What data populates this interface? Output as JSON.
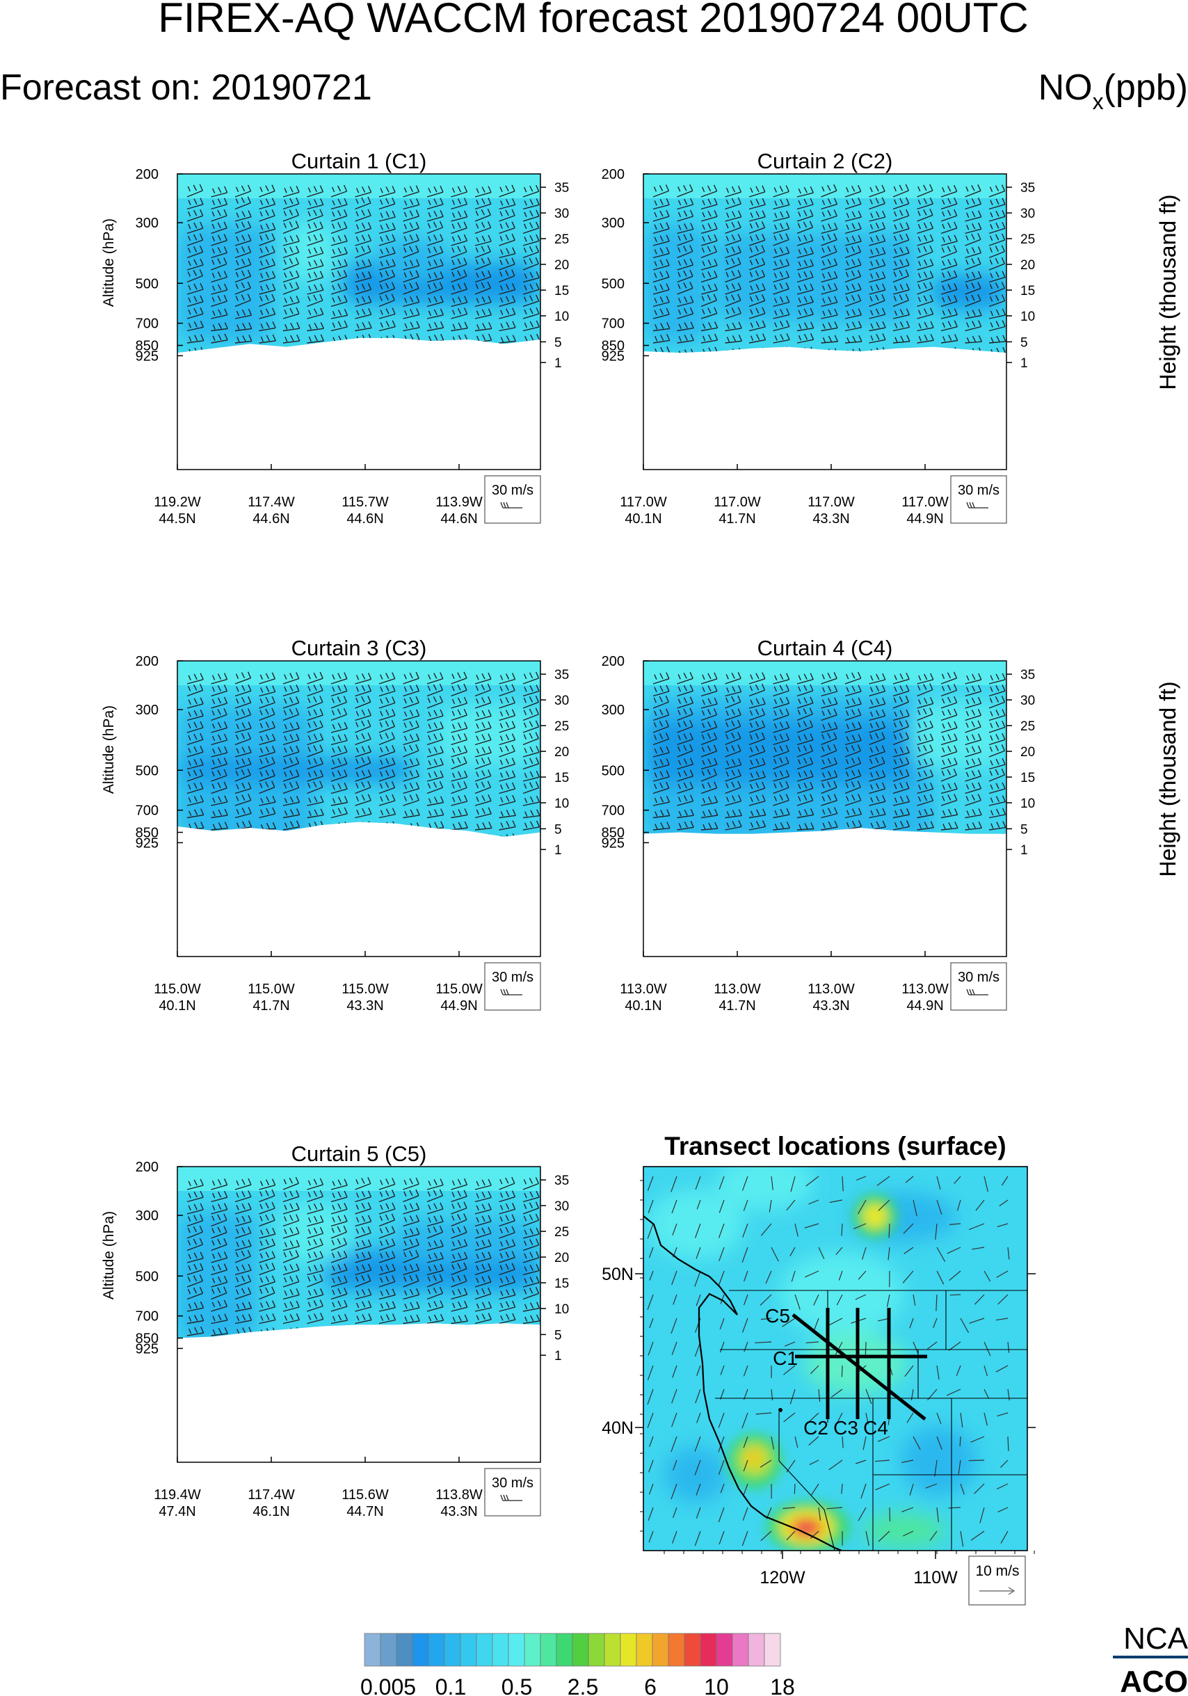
{
  "header": {
    "title": "FIREX-AQ WACCM forecast 20190724 00UTC",
    "forecast_on": "Forecast on: 20190721",
    "species": "NO",
    "species_sub": "x",
    "units": "(ppb)"
  },
  "colors": {
    "bg_fill": "#3fd6ef",
    "mid_fill": "#2ab8ee",
    "deep_fill": "#149ae8",
    "light_fill": "#58ecf0"
  },
  "chart_data": [
    {
      "type": "heatmap",
      "title": "Curtain 1 (C1)",
      "ylabel": "Altitude (hPa)",
      "y2label": "Height (thousand ft)",
      "pressure_ticks": [
        "200",
        "300",
        "500",
        "700",
        "850",
        "925"
      ],
      "height_ticks": [
        "35",
        "30",
        "25",
        "20",
        "15",
        "10",
        "5",
        "1"
      ],
      "x_ticks": [
        {
          "lon": "119.2W",
          "lat": "44.5N"
        },
        {
          "lon": "117.4W",
          "lat": "44.6N"
        },
        {
          "lon": "115.7W",
          "lat": "44.6N"
        },
        {
          "lon": "113.9W",
          "lat": "44.6N"
        }
      ],
      "wind_ref": "30 m/s",
      "value_range_ppb": [
        0.1,
        0.5
      ]
    },
    {
      "type": "heatmap",
      "title": "Curtain 2 (C2)",
      "ylabel": "",
      "y2label": "Height (thousand ft)",
      "pressure_ticks": [
        "200",
        "300",
        "500",
        "700",
        "850",
        "925"
      ],
      "height_ticks": [
        "35",
        "30",
        "25",
        "20",
        "15",
        "10",
        "5",
        "1"
      ],
      "x_ticks": [
        {
          "lon": "117.0W",
          "lat": "40.1N"
        },
        {
          "lon": "117.0W",
          "lat": "41.7N"
        },
        {
          "lon": "117.0W",
          "lat": "43.3N"
        },
        {
          "lon": "117.0W",
          "lat": "44.9N"
        }
      ],
      "wind_ref": "30 m/s",
      "value_range_ppb": [
        0.1,
        0.5
      ]
    },
    {
      "type": "heatmap",
      "title": "Curtain 3 (C3)",
      "ylabel": "Altitude (hPa)",
      "y2label": "Height (thousand ft)",
      "pressure_ticks": [
        "200",
        "300",
        "500",
        "700",
        "850",
        "925"
      ],
      "height_ticks": [
        "35",
        "30",
        "25",
        "20",
        "15",
        "10",
        "5",
        "1"
      ],
      "x_ticks": [
        {
          "lon": "115.0W",
          "lat": "40.1N"
        },
        {
          "lon": "115.0W",
          "lat": "41.7N"
        },
        {
          "lon": "115.0W",
          "lat": "43.3N"
        },
        {
          "lon": "115.0W",
          "lat": "44.9N"
        }
      ],
      "wind_ref": "30 m/s",
      "value_range_ppb": [
        0.1,
        0.5
      ]
    },
    {
      "type": "heatmap",
      "title": "Curtain 4 (C4)",
      "ylabel": "",
      "y2label": "Height (thousand ft)",
      "pressure_ticks": [
        "200",
        "300",
        "500",
        "700",
        "850",
        "925"
      ],
      "height_ticks": [
        "35",
        "30",
        "25",
        "20",
        "15",
        "10",
        "5",
        "1"
      ],
      "x_ticks": [
        {
          "lon": "113.0W",
          "lat": "40.1N"
        },
        {
          "lon": "113.0W",
          "lat": "41.7N"
        },
        {
          "lon": "113.0W",
          "lat": "43.3N"
        },
        {
          "lon": "113.0W",
          "lat": "44.9N"
        }
      ],
      "wind_ref": "30 m/s",
      "value_range_ppb": [
        0.1,
        0.5
      ]
    },
    {
      "type": "heatmap",
      "title": "Curtain 5 (C5)",
      "ylabel": "Altitude (hPa)",
      "y2label": "",
      "pressure_ticks": [
        "200",
        "300",
        "500",
        "700",
        "850",
        "925"
      ],
      "height_ticks": [
        "35",
        "30",
        "25",
        "20",
        "15",
        "10",
        "5",
        "1"
      ],
      "x_ticks": [
        {
          "lon": "119.4W",
          "lat": "47.4N"
        },
        {
          "lon": "117.4W",
          "lat": "46.1N"
        },
        {
          "lon": "115.6W",
          "lat": "44.7N"
        },
        {
          "lon": "113.8W",
          "lat": "43.3N"
        }
      ],
      "wind_ref": "30 m/s",
      "value_range_ppb": [
        0.1,
        0.5
      ]
    },
    {
      "type": "map",
      "title": "Transect locations (surface)",
      "lat_ticks": [
        "50N",
        "40N"
      ],
      "lon_ticks": [
        "120W",
        "110W"
      ],
      "transect_labels": [
        "C5",
        "C1",
        "C2",
        "C3",
        "C4"
      ],
      "wind_ref": "10 m/s",
      "hotspots_ppb": [
        {
          "near": "southern California",
          "value": 10
        },
        {
          "near": "northern California",
          "value": 6
        },
        {
          "near": "southern Alberta",
          "value": 6
        }
      ]
    }
  ],
  "colorbar": {
    "colors": [
      "#8cb4da",
      "#6a9fcd",
      "#4d8ec3",
      "#1d95ec",
      "#22a6ee",
      "#2ab8ee",
      "#34c8ee",
      "#3fd6ef",
      "#4ae2ef",
      "#58ecf0",
      "#5ef0c8",
      "#4ee6a0",
      "#3ed873",
      "#50d040",
      "#8cd838",
      "#bce030",
      "#e6e628",
      "#f0c828",
      "#f3a42c",
      "#f37830",
      "#ee4c38",
      "#e62c5a",
      "#e43c92",
      "#ea78c4",
      "#f0b4de",
      "#f6d8e8"
    ],
    "labels": [
      "0.005",
      "0.1",
      "0.5",
      "2.5",
      "6",
      "10",
      "18"
    ]
  },
  "logo": {
    "line1": "NCA",
    "line2": "ACO"
  }
}
